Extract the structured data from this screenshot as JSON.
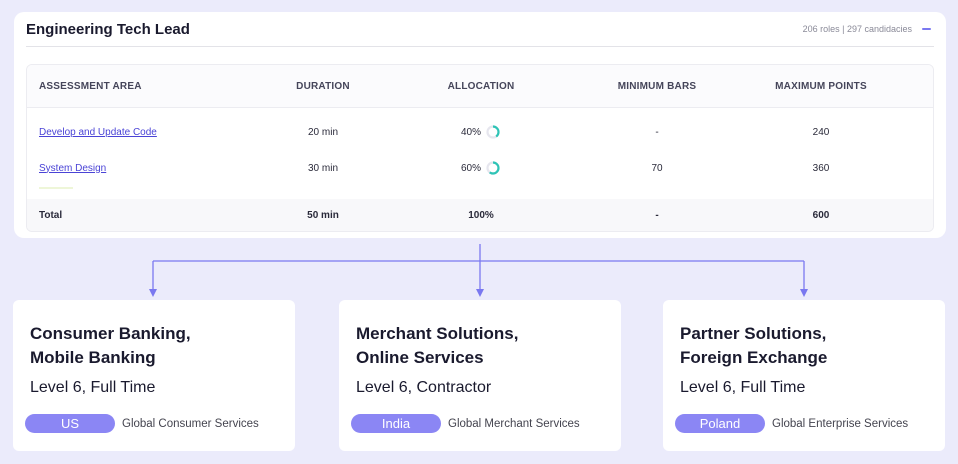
{
  "role_card": {
    "title": "Engineering Tech Lead",
    "summary": "206 roles | 297 candidacies"
  },
  "table": {
    "headers": {
      "area": "ASSESSMENT AREA",
      "duration": "DURATION",
      "allocation": "ALLOCATION",
      "minimum_bars": "MINIMUM BARS",
      "maximum_points": "MAXIMUM POINTS"
    },
    "rows": [
      {
        "area": "Develop and Update Code",
        "duration": "20 min",
        "allocation": "40%",
        "allocation_fraction": 0.4,
        "minimum_bars": "-",
        "maximum_points": "240"
      },
      {
        "area": "System Design",
        "duration": "30 min",
        "allocation": "60%",
        "allocation_fraction": 0.6,
        "minimum_bars": "70",
        "maximum_points": "360"
      }
    ],
    "total": {
      "label": "Total",
      "duration": "50 min",
      "allocation": "100%",
      "minimum_bars": "-",
      "maximum_points": "600"
    }
  },
  "colors": {
    "accent": "#7a78f0",
    "ring": "#2ec4b6",
    "ring_track": "#e6e6ee",
    "pill": "#8b86f4"
  },
  "departments": [
    {
      "name_line1": "Consumer Banking,",
      "name_line2": "Mobile Banking",
      "level": "Level 6, Full Time",
      "country": "US",
      "org": "Global Consumer Services"
    },
    {
      "name_line1": "Merchant Solutions,",
      "name_line2": "Online Services",
      "level": "Level 6, Contractor",
      "country": "India",
      "org": "Global Merchant Services"
    },
    {
      "name_line1": "Partner Solutions,",
      "name_line2": "Foreign Exchange",
      "level": "Level 6, Full Time",
      "country": "Poland",
      "org": "Global Enterprise Services"
    }
  ]
}
